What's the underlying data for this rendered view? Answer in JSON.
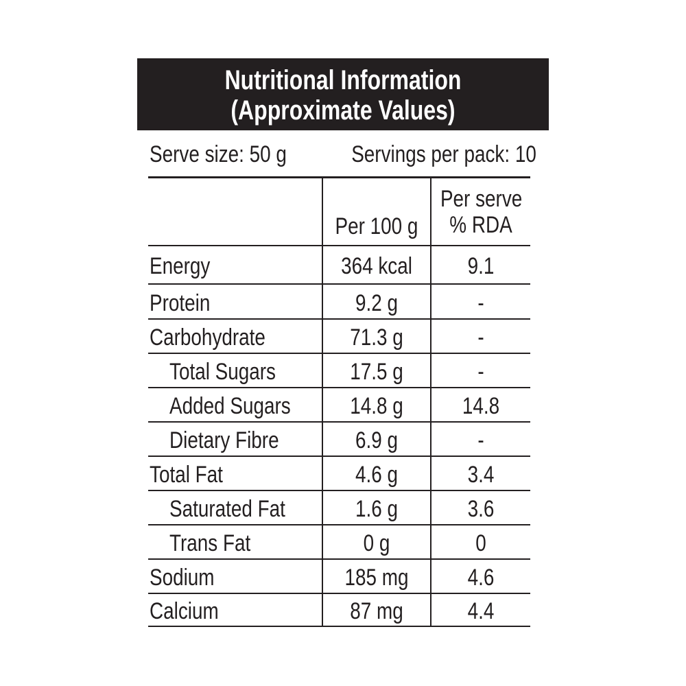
{
  "header": {
    "title": [
      "Nutritional Information",
      "(Approximate Values)"
    ]
  },
  "serve_info": {
    "serve_size": "Serve size: 50 g",
    "servings": "Servings per pack: 10"
  },
  "table": {
    "headers": {
      "per_100g": "Per 100 g",
      "per_serve_rda": [
        "Per serve",
        "% RDA"
      ]
    },
    "rows": [
      [
        "Energy",
        "364 kcal",
        "9.1"
      ],
      [
        "Protein",
        "9.2 g",
        "-"
      ],
      [
        "Carbohydrate",
        "71.3 g",
        "-"
      ],
      [
        "Total Sugars",
        "17.5 g",
        "-"
      ],
      [
        "Added Sugars",
        "14.8 g",
        "14.8"
      ],
      [
        "Dietary Fibre",
        "6.9 g",
        "-"
      ],
      [
        "Total Fat",
        "4.6 g",
        "3.4"
      ],
      [
        "Saturated Fat",
        "1.6 g",
        "3.6"
      ],
      [
        "Trans Fat",
        "0 g",
        "0"
      ],
      [
        "Sodium",
        "185 mg",
        "4.6"
      ],
      [
        "Calcium",
        "87 mg",
        "4.4"
      ]
    ]
  }
}
